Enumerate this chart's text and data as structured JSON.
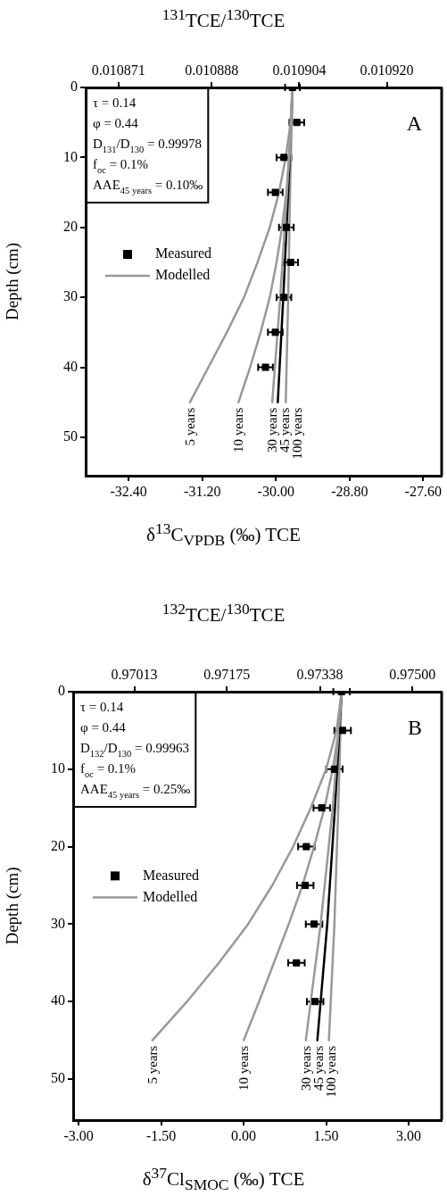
{
  "chart_data": [
    {
      "type": "scatter",
      "title": "A",
      "xlabel": "δ$^{13}$C$_{VPDB}$ (‰) TCE",
      "x2label": "$^{131}$TCE/$^{130}$TCE",
      "ylabel": "Depth (cm)",
      "annotations": [
        "τ = 0.14",
        "φ = 0.44",
        "D$_{131}$/D$_{130}$ = 0.99978",
        "f$_{oc}$ = 0.1%",
        "AAE$_{45 years}$ = 0.10‰",
        "Modelled"
      ],
      "xlim": [
        -33.1,
        -27.3
      ],
      "xticks": [
        {
          "value": -32.4,
          "label": "-32.40"
        },
        {
          "value": -31.2,
          "label": "-31.20"
        },
        {
          "value": -30,
          "label": "-30.00"
        },
        {
          "value": -28.8,
          "label": "-28.80"
        },
        {
          "value": -27.6,
          "label": "-27.60"
        }
      ],
      "x2lim": [
        0.010865,
        0.01093
      ],
      "x2ticks": [
        {
          "value": 0.010871,
          "label": "0.010871"
        },
        {
          "value": 0.010888,
          "label": "0.010888"
        },
        {
          "value": 0.010904,
          "label": "0.010904"
        },
        {
          "value": 0.01092,
          "label": "0.010920"
        }
      ],
      "ylim": [
        55.5,
        0
      ],
      "yticks": [
        0,
        10,
        20,
        30,
        40,
        50
      ],
      "legend": "left",
      "series": [
        {
          "name": "Measured",
          "marker": "square",
          "color": "#000000",
          "x": [
            -29.73,
            -29.66,
            -29.87,
            -30.01,
            -29.83,
            -29.76,
            -29.87,
            -30.01,
            -30.17
          ],
          "values": [
            0,
            5,
            10,
            15,
            20,
            25,
            30,
            35,
            40
          ],
          "xerrors": [
            0.12,
            0.12,
            0.12,
            0.12,
            0.12,
            0.12,
            0.12,
            0.12,
            0.12
          ]
        },
        {
          "name": "5 years",
          "type": "line",
          "color": "#999999",
          "x": [
            -29.73,
            -29.76,
            -29.84,
            -29.95,
            -30.1,
            -30.3,
            -30.52,
            -30.8,
            -31.1,
            -31.4
          ],
          "values": [
            0,
            5,
            10,
            15,
            20,
            25,
            30,
            35,
            40,
            45
          ]
        },
        {
          "name": "10 years",
          "type": "line",
          "color": "#999999",
          "x": [
            -29.73,
            -29.74,
            -29.78,
            -29.83,
            -29.9,
            -29.99,
            -30.1,
            -30.25,
            -30.42,
            -30.61
          ],
          "values": [
            0,
            5,
            10,
            15,
            20,
            25,
            30,
            35,
            40,
            45
          ]
        },
        {
          "name": "30 years",
          "type": "line",
          "color": "#999999",
          "x": [
            -29.73,
            -29.82,
            -29.93,
            -30.06
          ],
          "values": [
            0,
            15,
            30,
            45
          ]
        },
        {
          "name": "45 years",
          "type": "line",
          "color": "#000000",
          "x": [
            -29.73,
            -29.8,
            -29.88,
            -29.97
          ],
          "values": [
            0,
            15,
            30,
            45
          ]
        },
        {
          "name": "100 years",
          "type": "line",
          "color": "#999999",
          "x": [
            -29.73,
            -29.77,
            -29.8,
            -29.84
          ],
          "values": [
            0,
            15,
            30,
            45
          ]
        }
      ]
    },
    {
      "type": "scatter",
      "title": "B",
      "xlabel": "δ$^{37}$Cl$_{SMOC}$ (‰) TCE",
      "x2label": "$^{132}$TCE/$^{130}$TCE",
      "ylabel": "Depth (cm)",
      "annotations": [
        "τ = 0.14",
        "φ = 0.44",
        "D$_{132}$/D$_{130}$ = 0.99963",
        "f$_{oc}$ = 0.1%",
        "AAE$_{45 years}$ = 0.25‰",
        "Modelled"
      ],
      "xlim": [
        -3.1,
        3.6
      ],
      "xticks": [
        {
          "value": -3,
          "label": "-3.00"
        },
        {
          "value": -1.5,
          "label": "-1.50"
        },
        {
          "value": 0,
          "label": "0.00"
        },
        {
          "value": 1.5,
          "label": "1.50"
        },
        {
          "value": 3,
          "label": "3.00"
        }
      ],
      "x2lim": [
        0.96906,
        0.97551
      ],
      "x2ticks": [
        {
          "value": 0.97013,
          "label": "0.97013"
        },
        {
          "value": 0.97175,
          "label": "0.97175"
        },
        {
          "value": 0.97338,
          "label": "0.97338"
        },
        {
          "value": 0.975,
          "label": "0.97500"
        }
      ],
      "ylim": [
        55.3,
        0
      ],
      "yticks": [
        0,
        10,
        20,
        30,
        40,
        50
      ],
      "legend": "left",
      "series": [
        {
          "name": "Measured",
          "marker": "square",
          "color": "#000000",
          "x": [
            1.78,
            1.8,
            1.65,
            1.42,
            1.14,
            1.12,
            1.28,
            0.96,
            1.3
          ],
          "values": [
            0,
            5,
            10,
            15,
            20,
            25,
            30,
            35,
            40
          ],
          "xerrors": [
            0.15,
            0.15,
            0.15,
            0.15,
            0.15,
            0.15,
            0.15,
            0.15,
            0.15
          ]
        },
        {
          "name": "5 years",
          "type": "line",
          "color": "#999999",
          "x": [
            1.78,
            1.69,
            1.5,
            1.22,
            0.9,
            0.52,
            0.08,
            -0.45,
            -1.03,
            -1.66
          ],
          "values": [
            0,
            5,
            10,
            15,
            20,
            25,
            30,
            35,
            40,
            45
          ]
        },
        {
          "name": "10 years",
          "type": "line",
          "color": "#999999",
          "x": [
            1.78,
            1.73,
            1.62,
            1.47,
            1.28,
            1.07,
            0.82,
            0.55,
            0.28,
            0
          ],
          "values": [
            0,
            5,
            10,
            15,
            20,
            25,
            30,
            35,
            40,
            45
          ]
        },
        {
          "name": "30 years",
          "type": "line",
          "color": "#999999",
          "x": [
            1.78,
            1.62,
            1.4,
            1.13
          ],
          "values": [
            0,
            15,
            30,
            45
          ]
        },
        {
          "name": "45 years",
          "type": "line",
          "color": "#000000",
          "x": [
            1.78,
            1.66,
            1.52,
            1.34
          ],
          "values": [
            0,
            15,
            30,
            45
          ]
        },
        {
          "name": "100 years",
          "type": "line",
          "color": "#999999",
          "x": [
            1.78,
            1.72,
            1.65,
            1.55
          ],
          "values": [
            0,
            15,
            30,
            45
          ]
        }
      ]
    }
  ]
}
